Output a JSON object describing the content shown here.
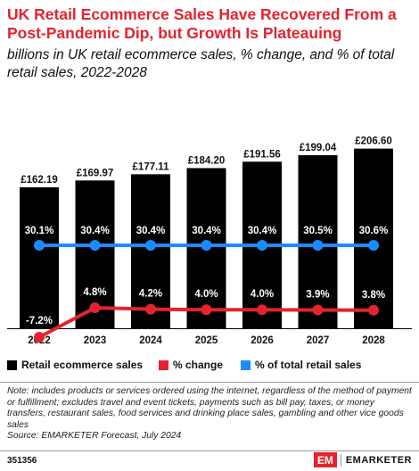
{
  "header": {
    "title": "UK Retail Ecommerce Sales Have Recovered From a Post-Pandemic Dip, but Growth Is Plateauing",
    "subtitle": "billions in UK retail ecommerce sales, % change, and % of total retail sales, 2022-2028"
  },
  "chart_data": {
    "type": "bar",
    "categories": [
      "2022",
      "2023",
      "2024",
      "2025",
      "2026",
      "2027",
      "2028"
    ],
    "series": [
      {
        "name": "Retail ecommerce sales",
        "type": "bar",
        "values": [
          162.19,
          169.97,
          177.11,
          184.2,
          191.56,
          199.04,
          206.6
        ],
        "labels": [
          "£162.19",
          "£169.97",
          "£177.11",
          "£184.20",
          "£191.56",
          "£199.04",
          "£206.60"
        ],
        "color": "#000000"
      },
      {
        "name": "% change",
        "type": "line",
        "values": [
          -7.2,
          4.8,
          4.2,
          4.0,
          4.0,
          3.9,
          3.8
        ],
        "labels": [
          "-7.2%",
          "4.8%",
          "4.2%",
          "4.0%",
          "4.0%",
          "3.9%",
          "3.8%"
        ],
        "color": "#e4232e"
      },
      {
        "name": "% of total retail sales",
        "type": "line",
        "values": [
          30.1,
          30.4,
          30.4,
          30.4,
          30.4,
          30.5,
          30.6
        ],
        "labels": [
          "30.1%",
          "30.4%",
          "30.4%",
          "30.4%",
          "30.4%",
          "30.5%",
          "30.6%"
        ],
        "color": "#1a8cff"
      }
    ],
    "legend": "bottom"
  },
  "note": "Note: includes products or services ordered using the internet, regardless of the method of payment or fulfillment; excludes travel and event tickets, payments such as bill pay, taxes, or money transfers, restaurant sales, food services and drinking place sales, gambling and other vice goods sales",
  "source": "Source: EMARKETER Forecast, July 2024",
  "footer": {
    "chart_id": "351356",
    "brand_logo": "EM",
    "brand_name": "EMARKETER"
  }
}
